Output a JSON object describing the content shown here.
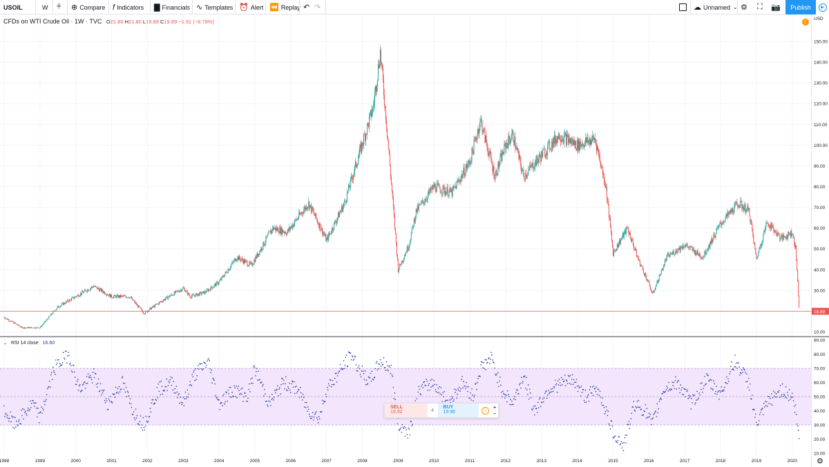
{
  "toolbar": {
    "symbol": "USOIL",
    "interval": "W",
    "compare_label": "Compare",
    "indicators_label": "Indicators",
    "financials_label": "Financials",
    "templates_label": "Templates",
    "alert_label": "Alert",
    "replay_label": "Replay",
    "layout_name": "Unnamed",
    "publish_label": "Publish"
  },
  "legend": {
    "title": "CFDs on WTI Crude Oil · 1W · TVC",
    "o_label": "O",
    "o": "21.80",
    "h_label": "H",
    "h": "21.80",
    "l_label": "L",
    "l": "19.89",
    "c_label": "C",
    "c": "19.89",
    "change": "−1.91 (−8.78%)"
  },
  "currency": "USD",
  "alert_badge": "!",
  "rsi_legend": {
    "label": "RSI 14 close",
    "value": "16.60"
  },
  "trade_widget": {
    "sell_label": "SELL",
    "sell_price": "19.92",
    "spread": "4",
    "buy_label": "BUY",
    "buy_price": "19.96",
    "info": "i",
    "plus": "+",
    "minus": "−"
  },
  "colors": {
    "up": "#26a69a",
    "down": "#ef5350",
    "rsi_band": "#f3e5fb",
    "rsi_dots": "#1f3ba8",
    "last_price_line": "#ef5350"
  },
  "chart_data": [
    {
      "type": "candlestick",
      "title": "CFDs on WTI Crude Oil",
      "x_ticks": [
        "1998",
        "1999",
        "2000",
        "2001",
        "2002",
        "2003",
        "2004",
        "2005",
        "2006",
        "2007",
        "2008",
        "2009",
        "2010",
        "2011",
        "2012",
        "2013",
        "2014",
        "2015",
        "2016",
        "2017",
        "2018",
        "2019",
        "2020"
      ],
      "y_ticks": [
        10,
        20,
        30,
        40,
        50,
        60,
        70,
        80,
        90,
        100,
        110,
        120,
        130,
        140,
        150
      ],
      "ylim": [
        7,
        154
      ],
      "last_price": 19.89,
      "last_price_label": "19.89",
      "series": [
        {
          "name": "USOIL",
          "x": [
            1998.0,
            1998.5,
            1999.0,
            1999.5,
            2000.0,
            2000.5,
            2001.0,
            2001.5,
            2001.9,
            2002.5,
            2003.0,
            2003.2,
            2003.6,
            2004.0,
            2004.5,
            2004.9,
            2005.5,
            2005.9,
            2006.5,
            2006.9,
            2007.0,
            2007.5,
            2007.9,
            2008.3,
            2008.5,
            2008.7,
            2009.0,
            2009.3,
            2009.5,
            2010.0,
            2010.5,
            2011.0,
            2011.3,
            2011.7,
            2012.0,
            2012.2,
            2012.5,
            2013.0,
            2013.5,
            2013.8,
            2014.0,
            2014.5,
            2014.8,
            2015.0,
            2015.4,
            2015.7,
            2016.0,
            2016.1,
            2016.5,
            2017.0,
            2017.5,
            2018.0,
            2018.5,
            2018.8,
            2019.0,
            2019.3,
            2019.7,
            2020.0,
            2020.1,
            2020.2
          ],
          "close": [
            17,
            12,
            12,
            22,
            27,
            32,
            27,
            27,
            19,
            26,
            31,
            27,
            29,
            34,
            46,
            42,
            60,
            58,
            72,
            58,
            54,
            72,
            95,
            118,
            145,
            105,
            40,
            52,
            68,
            80,
            77,
            92,
            112,
            85,
            100,
            105,
            85,
            95,
            105,
            102,
            100,
            103,
            80,
            48,
            60,
            45,
            33,
            28,
            46,
            52,
            46,
            62,
            72,
            68,
            45,
            63,
            55,
            58,
            50,
            20
          ]
        }
      ]
    },
    {
      "type": "scatter",
      "title": "RSI 14 close",
      "x_ticks": [
        "1998",
        "1999",
        "2000",
        "2001",
        "2002",
        "2003",
        "2004",
        "2005",
        "2006",
        "2007",
        "2008",
        "2009",
        "2010",
        "2011",
        "2012",
        "2013",
        "2014",
        "2015",
        "2016",
        "2017",
        "2018",
        "2019",
        "2020"
      ],
      "y_ticks": [
        10,
        20,
        30,
        40,
        50,
        60,
        70,
        80,
        90
      ],
      "ylim": [
        8,
        92
      ],
      "bands": [
        30,
        50,
        70
      ],
      "last_value": 16.6,
      "series": [
        {
          "name": "RSI",
          "x": [
            1998.0,
            1998.3,
            1998.8,
            1999.0,
            1999.4,
            1999.8,
            2000.1,
            2000.5,
            2000.9,
            2001.3,
            2001.6,
            2001.9,
            2002.3,
            2002.7,
            2003.0,
            2003.3,
            2003.7,
            2004.0,
            2004.4,
            2004.8,
            2005.0,
            2005.4,
            2005.8,
            2006.2,
            2006.5,
            2006.8,
            2007.0,
            2007.3,
            2007.7,
            2007.9,
            2008.2,
            2008.5,
            2008.8,
            2009.0,
            2009.3,
            2009.6,
            2010.0,
            2010.4,
            2010.8,
            2011.1,
            2011.3,
            2011.6,
            2011.9,
            2012.2,
            2012.5,
            2012.8,
            2013.2,
            2013.6,
            2013.9,
            2014.2,
            2014.6,
            2014.8,
            2015.0,
            2015.3,
            2015.6,
            2015.9,
            2016.1,
            2016.4,
            2016.8,
            2017.2,
            2017.6,
            2018.0,
            2018.4,
            2018.8,
            2019.0,
            2019.3,
            2019.7,
            2020.0,
            2020.1,
            2020.2
          ],
          "values": [
            40,
            30,
            45,
            35,
            70,
            80,
            55,
            65,
            45,
            60,
            40,
            30,
            55,
            60,
            45,
            65,
            75,
            45,
            55,
            50,
            70,
            45,
            60,
            55,
            40,
            35,
            55,
            65,
            80,
            70,
            60,
            75,
            70,
            30,
            25,
            55,
            60,
            45,
            60,
            50,
            70,
            77,
            55,
            45,
            65,
            40,
            55,
            60,
            62,
            50,
            55,
            40,
            25,
            15,
            45,
            40,
            30,
            55,
            60,
            45,
            62,
            52,
            75,
            60,
            30,
            45,
            55,
            50,
            40,
            17
          ]
        }
      ]
    }
  ]
}
